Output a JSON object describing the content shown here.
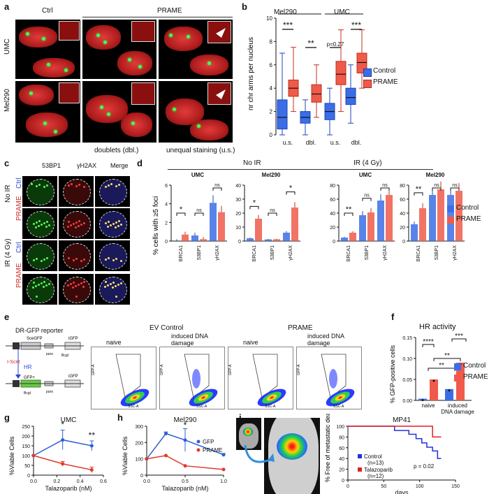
{
  "panels": {
    "a": {
      "letter": "a",
      "col_ctrl": "Ctrl",
      "col_prame": "PRAME",
      "row_umc": "UMC",
      "row_mel290": "Mel290",
      "caption_dbl": "doublets (dbl.)",
      "caption_us": "unequal staining (u.s.)"
    },
    "b": {
      "letter": "b",
      "group1": "Mel290",
      "group2": "UMC",
      "ylabel": "nr chr arms per nucleus",
      "ticks": [
        "0",
        "2",
        "4",
        "6",
        "8",
        "10"
      ],
      "xcats": [
        "u.s.",
        "dbl.",
        "u.s.",
        "dbl."
      ],
      "sig": [
        "***",
        "**",
        "p=0.27",
        "***"
      ],
      "legend": [
        "Control",
        "PRAME"
      ]
    },
    "c": {
      "letter": "c",
      "cols": [
        "53BP1",
        "γH2AX",
        "Merge"
      ],
      "row_noir": "No IR",
      "row_ir": "IR (4 Gy)",
      "ctrl": "Ctrl",
      "prame": "PRAME"
    },
    "d": {
      "letter": "d",
      "noir": "No IR",
      "ir": "IR (4 Gy)",
      "ylabel": "% cells with ≥5 foci",
      "sub1": "UMC",
      "sub2": "Mel290",
      "sub3": "UMC",
      "sub4": "Mel290",
      "cats": [
        "BRCA1",
        "53BP1",
        "γH2AX"
      ],
      "legend": [
        "Control",
        "PRAME"
      ],
      "y1": [
        "0",
        "2",
        "4",
        "6"
      ],
      "y2": [
        "0",
        "10",
        "20",
        "30",
        "40"
      ],
      "y3": [
        "0",
        "20",
        "40",
        "60",
        "80"
      ],
      "y4": [
        "0",
        "20",
        "40",
        "60",
        "80"
      ],
      "sig1": [
        "*",
        "ns",
        "ns"
      ],
      "sig2": [
        "*",
        "ns",
        "*"
      ],
      "sig3": [
        "**",
        "ns",
        "ns"
      ],
      "sig4": [
        "**",
        "ns",
        "ns"
      ]
    },
    "e": {
      "letter": "e",
      "reporter": "DR-GFP reporter",
      "ev_title": "EV Control",
      "prame_title": "PRAME",
      "naive": "naive",
      "induced": "induced DNA damage",
      "isce": "I-SceI",
      "hr": "HR",
      "scegfp": "SceGFP",
      "igfp": "iGFP",
      "gfp_plus": "GFP+",
      "puro": "puro",
      "bcgl": "BcgI",
      "xaxis": "SSC-A",
      "yaxis": "GFP-A"
    },
    "f": {
      "letter": "f",
      "title": "HR activity",
      "ylabel": "% GFP-positive cells",
      "ticks": [
        "0.00",
        "0.05",
        "0.10",
        "0.15"
      ],
      "cats": [
        "naive",
        "induced DNA damage"
      ],
      "legend": [
        "Control",
        "PRAME"
      ],
      "sig": [
        "****",
        "***",
        "**",
        "**"
      ]
    },
    "g": {
      "letter": "g",
      "title": "UMC",
      "ylabel": "%Viable Cells",
      "xlabel": "Talazoparib (nM)",
      "xticks": [
        "0.0",
        "0.2",
        "0.4",
        "0.6"
      ],
      "yticks": [
        "0",
        "50",
        "100",
        "150",
        "200",
        "250"
      ],
      "sig": [
        "*",
        "**"
      ]
    },
    "h": {
      "letter": "h",
      "title": "Mel290",
      "ylabel": "%Viable Cells",
      "xlabel": "Talazoparib (nM)",
      "xticks": [
        "0.0",
        "0.5",
        "1.0"
      ],
      "yticks": [
        "0",
        "100",
        "200",
        "300"
      ],
      "legend": [
        "GFP",
        "PRAME"
      ],
      "sig": [
        "*"
      ]
    },
    "i": {
      "letter": "i",
      "title": "MP41",
      "ylabel": "% Free of metastatic death",
      "xlabel": "days",
      "xticks": [
        "0",
        "50",
        "100",
        "150"
      ],
      "yticks": [
        "0",
        "20",
        "40",
        "60",
        "80",
        "100"
      ],
      "legend_ctrl": "Control",
      "legend_ctrl_n": "(n=13)",
      "legend_tala": "Talazoparib",
      "legend_tala_n": "(n=12)",
      "pval": "p = 0.02"
    }
  },
  "colors": {
    "control": "#3b6ee6",
    "prame": "#ef5a4a",
    "gfp_line": "#2f5fd6",
    "prame_line": "#e03a2a",
    "ctrl_text": "#2f47d1",
    "prame_text": "#d22a2a"
  },
  "chart_data": [
    {
      "type": "box",
      "panel": "b",
      "categories": [
        "Mel290 u.s.",
        "Mel290 dbl.",
        "UMC u.s.",
        "UMC dbl."
      ],
      "series": [
        {
          "name": "Control",
          "median": [
            1.5,
            1.5,
            2,
            3.2
          ],
          "q1": [
            0.5,
            1,
            1.3,
            2.6
          ],
          "q3": [
            3,
            2,
            2.7,
            4
          ],
          "min": [
            0,
            0,
            0,
            1
          ],
          "max": [
            7,
            3,
            4,
            6
          ]
        },
        {
          "name": "PRAME",
          "median": [
            4,
            3.5,
            5.2,
            6.2
          ],
          "q1": [
            3.3,
            2.8,
            4.3,
            5.3
          ],
          "q3": [
            4.7,
            4.3,
            6.3,
            7
          ],
          "min": [
            2,
            1.5,
            2,
            4
          ],
          "max": [
            7.5,
            6,
            9,
            9
          ]
        }
      ],
      "ylim": [
        0,
        10
      ]
    },
    {
      "type": "bar",
      "panel": "d-umc-noir",
      "categories": [
        "BRCA1",
        "53BP1",
        "γH2AX"
      ],
      "series": [
        {
          "name": "Control",
          "values": [
            0,
            0.6,
            4.1
          ]
        },
        {
          "name": "PRAME",
          "values": [
            0.7,
            0.2,
            3.1
          ]
        }
      ],
      "ylim": [
        0,
        6
      ]
    },
    {
      "type": "bar",
      "panel": "d-mel290-noir",
      "categories": [
        "BRCA1",
        "53BP1",
        "γH2AX"
      ],
      "series": [
        {
          "name": "Control",
          "values": [
            2,
            1.2,
            6
          ]
        },
        {
          "name": "PRAME",
          "values": [
            16,
            1.3,
            24
          ]
        }
      ],
      "ylim": [
        0,
        40
      ]
    },
    {
      "type": "bar",
      "panel": "d-umc-ir",
      "categories": [
        "BRCA1",
        "53BP1",
        "γH2AX"
      ],
      "series": [
        {
          "name": "Control",
          "values": [
            5,
            37,
            58
          ]
        },
        {
          "name": "PRAME",
          "values": [
            12,
            41,
            66
          ]
        }
      ],
      "ylim": [
        0,
        80
      ]
    },
    {
      "type": "bar",
      "panel": "d-mel290-ir",
      "categories": [
        "BRCA1",
        "53BP1",
        "γH2AX"
      ],
      "series": [
        {
          "name": "Control",
          "values": [
            24,
            66,
            66
          ]
        },
        {
          "name": "PRAME",
          "values": [
            47,
            74,
            72
          ]
        }
      ],
      "ylim": [
        0,
        80
      ]
    },
    {
      "type": "bar",
      "panel": "f",
      "categories": [
        "naive",
        "induced DNA damage"
      ],
      "series": [
        {
          "name": "Control",
          "values": [
            0.004,
            0.027
          ]
        },
        {
          "name": "PRAME",
          "values": [
            0.05,
            0.09
          ]
        }
      ],
      "ylim": [
        0,
        0.15
      ]
    },
    {
      "type": "line",
      "panel": "g",
      "x": [
        0,
        0.25,
        0.5
      ],
      "series": [
        {
          "name": "GFP",
          "values": [
            100,
            180,
            150
          ],
          "err": [
            0,
            50,
            25
          ]
        },
        {
          "name": "PRAME",
          "values": [
            100,
            58,
            27
          ],
          "err": [
            0,
            12,
            14
          ]
        }
      ],
      "xlim": [
        0,
        0.6
      ],
      "ylim": [
        0,
        250
      ]
    },
    {
      "type": "line",
      "panel": "h",
      "x": [
        0,
        0.25,
        0.5,
        1.0
      ],
      "series": [
        {
          "name": "GFP",
          "values": [
            100,
            255,
            215,
            125
          ],
          "err": [
            0,
            10,
            70,
            8
          ]
        },
        {
          "name": "PRAME",
          "values": [
            100,
            120,
            57,
            35
          ],
          "err": [
            0,
            0,
            0,
            0
          ]
        }
      ],
      "xlim": [
        0,
        1.0
      ],
      "ylim": [
        0,
        300
      ]
    },
    {
      "type": "line",
      "panel": "i",
      "x": [
        0,
        150
      ],
      "series": [
        {
          "name": "Control",
          "steps": [
            [
              0,
              100
            ],
            [
              65,
              100
            ],
            [
              65,
              92
            ],
            [
              85,
              92
            ],
            [
              85,
              85
            ],
            [
              95,
              85
            ],
            [
              95,
              77
            ],
            [
              103,
              77
            ],
            [
              103,
              69
            ],
            [
              110,
              69
            ],
            [
              110,
              61
            ],
            [
              118,
              61
            ],
            [
              118,
              54
            ],
            [
              125,
              54
            ],
            [
              125,
              40
            ],
            [
              130,
              40
            ]
          ]
        },
        {
          "name": "Talazoparib",
          "steps": [
            [
              0,
              100
            ],
            [
              118,
              100
            ],
            [
              118,
              80
            ],
            [
              130,
              80
            ]
          ]
        }
      ],
      "xlim": [
        0,
        150
      ],
      "ylim": [
        0,
        100
      ]
    }
  ]
}
